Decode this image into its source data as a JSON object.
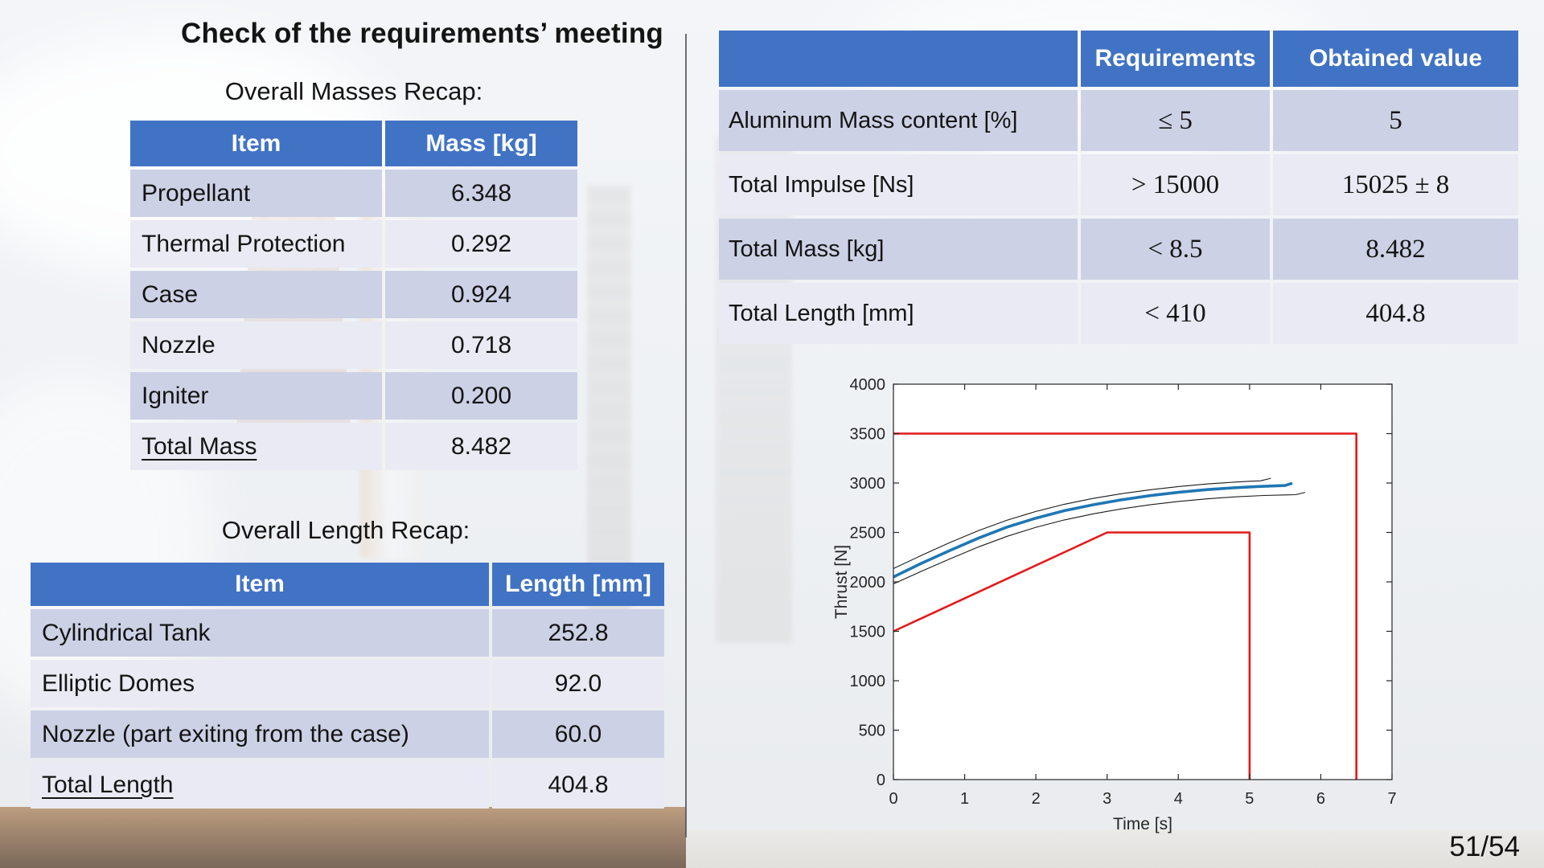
{
  "slide": {
    "title": "Check of the requirements’ meeting",
    "page_number": "51/54"
  },
  "masses_section": {
    "subtitle": "Overall Masses Recap:",
    "table": {
      "headers": [
        "Item",
        "Mass [kg]"
      ],
      "rows": [
        {
          "item": "Propellant",
          "value": "6.348"
        },
        {
          "item": "Thermal Protection",
          "value": "0.292"
        },
        {
          "item": "Case",
          "value": "0.924"
        },
        {
          "item": "Nozzle",
          "value": "0.718"
        },
        {
          "item": "Igniter",
          "value": "0.200"
        },
        {
          "item": "Total Mass",
          "value": "8.482"
        }
      ]
    }
  },
  "length_section": {
    "subtitle": "Overall Length Recap:",
    "table": {
      "headers": [
        "Item",
        "Length [mm]"
      ],
      "rows": [
        {
          "item": "Cylindrical Tank",
          "value": "252.8"
        },
        {
          "item": "Elliptic Domes",
          "value": "92.0"
        },
        {
          "item": "Nozzle (part exiting from the case)",
          "value": "60.0"
        },
        {
          "item": "Total Length",
          "value": "404.8"
        }
      ]
    }
  },
  "requirements_table": {
    "headers": [
      "",
      "Requirements",
      "Obtained value"
    ],
    "rows": [
      {
        "item": "Aluminum Mass content [%]",
        "requirement": "≤ 5",
        "obtained": "5"
      },
      {
        "item": "Total Impulse [Ns]",
        "requirement": "> 15000",
        "obtained": "15025 ± 8"
      },
      {
        "item": "Total Mass [kg]",
        "requirement": "< 8.5",
        "obtained": "8.482"
      },
      {
        "item": "Total Length [mm]",
        "requirement": "< 410",
        "obtained": "404.8"
      }
    ]
  },
  "colors": {
    "header_blue": "#4173C4",
    "row_dark": "#CDD1E5",
    "row_light": "#E9EAF3",
    "bound_red": "#E3191C",
    "nominal_blue": "#1F77B4"
  },
  "chart_data": {
    "type": "line",
    "title": "",
    "xlabel": "Time [s]",
    "ylabel": "Thrust [N]",
    "xlim": [
      0,
      7
    ],
    "ylim": [
      0,
      4000
    ],
    "xticks": [
      0,
      1,
      2,
      3,
      4,
      5,
      6,
      7
    ],
    "yticks": [
      0,
      500,
      1000,
      1500,
      2000,
      2500,
      3000,
      3500,
      4000
    ],
    "grid": false,
    "legend": "none",
    "series": [
      {
        "name": "upper-requirement-bound",
        "color": "#E3191C",
        "width": 2.6,
        "points": [
          [
            0,
            3500
          ],
          [
            6.5,
            3500
          ],
          [
            6.5,
            0
          ]
        ]
      },
      {
        "name": "lower-requirement-bound",
        "color": "#E3191C",
        "width": 2.6,
        "points": [
          [
            0,
            1500
          ],
          [
            3,
            2500
          ],
          [
            5,
            2500
          ],
          [
            5,
            0
          ]
        ]
      },
      {
        "name": "thrust-upper-uncertainty",
        "color": "#1a1a1a",
        "width": 1.1,
        "points": [
          [
            0,
            2135
          ],
          [
            0.4,
            2270
          ],
          [
            0.8,
            2400
          ],
          [
            1.2,
            2520
          ],
          [
            1.6,
            2625
          ],
          [
            2.0,
            2712
          ],
          [
            2.4,
            2785
          ],
          [
            2.8,
            2844
          ],
          [
            3.2,
            2892
          ],
          [
            3.6,
            2932
          ],
          [
            4.0,
            2964
          ],
          [
            4.4,
            2990
          ],
          [
            4.8,
            3010
          ],
          [
            5.0,
            3018
          ],
          [
            5.15,
            3022
          ],
          [
            5.3,
            3048
          ]
        ]
      },
      {
        "name": "thrust-lower-uncertainty",
        "color": "#1a1a1a",
        "width": 1.1,
        "points": [
          [
            0,
            1980
          ],
          [
            0.4,
            2110
          ],
          [
            0.8,
            2235
          ],
          [
            1.2,
            2355
          ],
          [
            1.6,
            2462
          ],
          [
            2.0,
            2552
          ],
          [
            2.4,
            2627
          ],
          [
            2.8,
            2688
          ],
          [
            3.2,
            2738
          ],
          [
            3.6,
            2780
          ],
          [
            4.0,
            2814
          ],
          [
            4.4,
            2840
          ],
          [
            4.8,
            2860
          ],
          [
            5.2,
            2874
          ],
          [
            5.5,
            2880
          ],
          [
            5.65,
            2882
          ],
          [
            5.78,
            2906
          ]
        ]
      },
      {
        "name": "thrust-nominal",
        "color": "#1F77B4",
        "width": 3.6,
        "points": [
          [
            0,
            2050
          ],
          [
            0.4,
            2190
          ],
          [
            0.8,
            2320
          ],
          [
            1.2,
            2445
          ],
          [
            1.6,
            2555
          ],
          [
            2.0,
            2645
          ],
          [
            2.4,
            2720
          ],
          [
            2.8,
            2780
          ],
          [
            3.2,
            2830
          ],
          [
            3.6,
            2872
          ],
          [
            4.0,
            2906
          ],
          [
            4.4,
            2933
          ],
          [
            4.8,
            2953
          ],
          [
            5.1,
            2964
          ],
          [
            5.35,
            2971
          ],
          [
            5.5,
            2975
          ],
          [
            5.6,
            2998
          ]
        ]
      }
    ]
  }
}
